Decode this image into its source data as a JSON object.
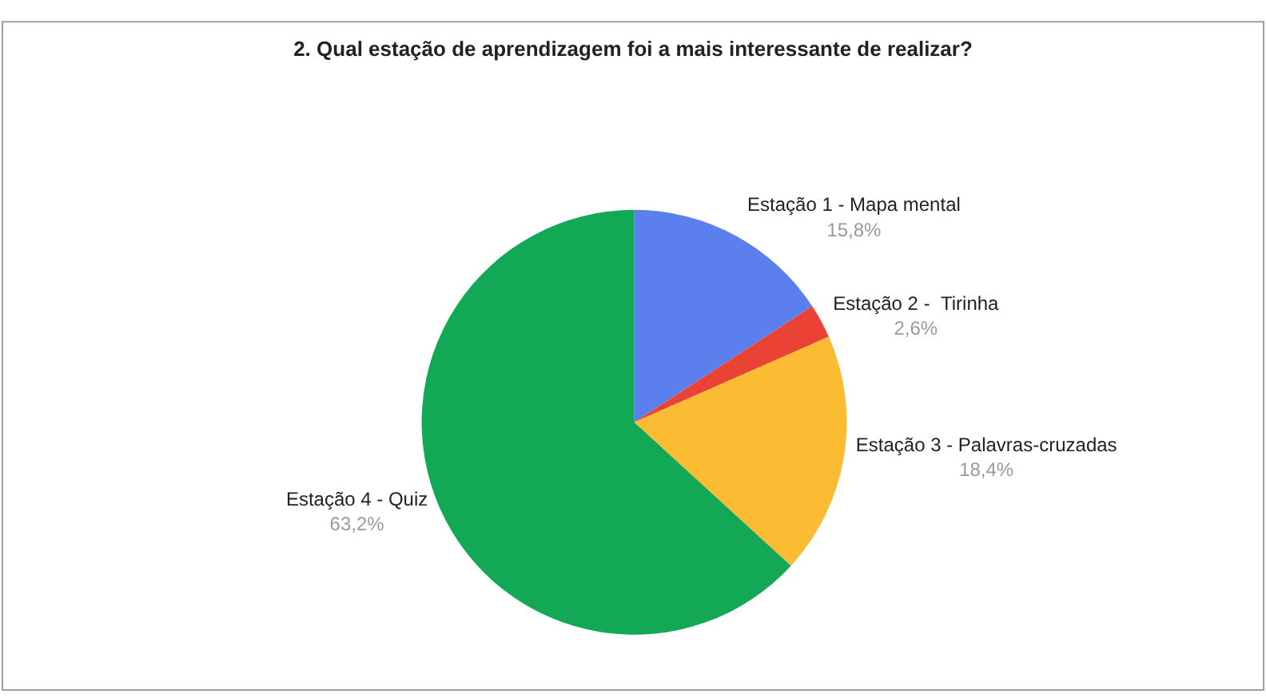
{
  "chart_data": {
    "type": "pie",
    "title": "2. Qual estação de aprendizagem foi a mais interessante de realizar?",
    "categories": [
      "Estação 1 - Mapa mental",
      "Estação 2 -  Tirinha",
      "Estação 3 - Palavras-cruzadas",
      "Estação 4 - Quiz"
    ],
    "values": [
      15.8,
      2.6,
      18.4,
      63.2
    ],
    "value_labels": [
      "15,8%",
      "2,6%",
      "18,4%",
      "63,2%"
    ],
    "colors": [
      "#5b7fec",
      "#ea4335",
      "#fbbc34",
      "#13a856"
    ],
    "legend": false
  }
}
